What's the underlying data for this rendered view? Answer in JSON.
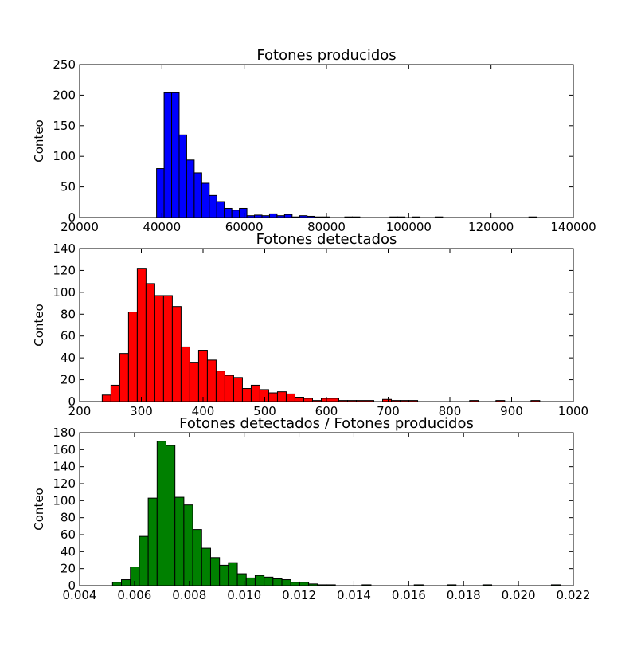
{
  "chart_data": [
    {
      "type": "bar",
      "title": "Fotones producidos",
      "xlabel": "",
      "ylabel": "Conteo",
      "color": "#0000ff",
      "xlim": [
        20000,
        140000
      ],
      "ylim": [
        0,
        250
      ],
      "xticks": [
        "20000",
        "40000",
        "60000",
        "80000",
        "100000",
        "120000",
        "140000"
      ],
      "yticks": [
        "0",
        "50",
        "100",
        "150",
        "200",
        "250"
      ],
      "bin_width": 1830,
      "bins": [
        {
          "x": 38700,
          "count": 80
        },
        {
          "x": 40530,
          "count": 204
        },
        {
          "x": 42360,
          "count": 204
        },
        {
          "x": 44190,
          "count": 135
        },
        {
          "x": 46020,
          "count": 94
        },
        {
          "x": 47850,
          "count": 73
        },
        {
          "x": 49680,
          "count": 56
        },
        {
          "x": 51510,
          "count": 36
        },
        {
          "x": 53340,
          "count": 26
        },
        {
          "x": 55170,
          "count": 15
        },
        {
          "x": 57000,
          "count": 12
        },
        {
          "x": 58830,
          "count": 15
        },
        {
          "x": 60660,
          "count": 3
        },
        {
          "x": 62490,
          "count": 4
        },
        {
          "x": 64320,
          "count": 3
        },
        {
          "x": 66150,
          "count": 6
        },
        {
          "x": 67980,
          "count": 3
        },
        {
          "x": 69810,
          "count": 5
        },
        {
          "x": 71640,
          "count": 1
        },
        {
          "x": 73470,
          "count": 3
        },
        {
          "x": 75300,
          "count": 2
        },
        {
          "x": 77130,
          "count": 1
        },
        {
          "x": 78960,
          "count": 1
        },
        {
          "x": 84450,
          "count": 1
        },
        {
          "x": 86280,
          "count": 1
        },
        {
          "x": 95430,
          "count": 1
        },
        {
          "x": 97260,
          "count": 1
        },
        {
          "x": 100920,
          "count": 1
        },
        {
          "x": 106410,
          "count": 1
        },
        {
          "x": 129200,
          "count": 1
        }
      ]
    },
    {
      "type": "bar",
      "title": "Fotones detectados",
      "xlabel": "",
      "ylabel": "Conteo",
      "color": "#ff0000",
      "xlim": [
        200,
        1000
      ],
      "ylim": [
        0,
        140
      ],
      "xticks": [
        "200",
        "300",
        "400",
        "500",
        "600",
        "700",
        "800",
        "900",
        "1000"
      ],
      "yticks": [
        "0",
        "20",
        "40",
        "60",
        "80",
        "100",
        "120",
        "140"
      ],
      "bin_width": 14.2,
      "bins": [
        {
          "x": 236.6,
          "count": 6
        },
        {
          "x": 250.8,
          "count": 15
        },
        {
          "x": 265.0,
          "count": 44
        },
        {
          "x": 279.2,
          "count": 82
        },
        {
          "x": 293.4,
          "count": 122
        },
        {
          "x": 307.6,
          "count": 108
        },
        {
          "x": 321.8,
          "count": 97
        },
        {
          "x": 336.0,
          "count": 97
        },
        {
          "x": 350.2,
          "count": 87
        },
        {
          "x": 364.4,
          "count": 50
        },
        {
          "x": 378.6,
          "count": 36
        },
        {
          "x": 392.8,
          "count": 47
        },
        {
          "x": 407.0,
          "count": 38
        },
        {
          "x": 421.2,
          "count": 28
        },
        {
          "x": 435.4,
          "count": 24
        },
        {
          "x": 449.6,
          "count": 22
        },
        {
          "x": 463.8,
          "count": 12
        },
        {
          "x": 478.0,
          "count": 15
        },
        {
          "x": 492.2,
          "count": 11
        },
        {
          "x": 506.4,
          "count": 8
        },
        {
          "x": 520.6,
          "count": 9
        },
        {
          "x": 534.8,
          "count": 7
        },
        {
          "x": 549.0,
          "count": 4
        },
        {
          "x": 563.2,
          "count": 3
        },
        {
          "x": 577.4,
          "count": 1
        },
        {
          "x": 591.6,
          "count": 3
        },
        {
          "x": 605.8,
          "count": 3
        },
        {
          "x": 620.0,
          "count": 1
        },
        {
          "x": 634.2,
          "count": 1
        },
        {
          "x": 648.4,
          "count": 1
        },
        {
          "x": 662.6,
          "count": 1
        },
        {
          "x": 691.0,
          "count": 2
        },
        {
          "x": 705.2,
          "count": 1
        },
        {
          "x": 719.4,
          "count": 1
        },
        {
          "x": 733.6,
          "count": 1
        },
        {
          "x": 832.0,
          "count": 1
        },
        {
          "x": 874.6,
          "count": 1
        },
        {
          "x": 931.4,
          "count": 1
        }
      ]
    },
    {
      "type": "bar",
      "title": "Fotones detectados / Fotones producidos",
      "xlabel": "",
      "ylabel": "Conteo",
      "color": "#008000",
      "xlim": [
        0.004,
        0.022
      ],
      "ylim": [
        0,
        180
      ],
      "xticks": [
        "0.004",
        "0.006",
        "0.008",
        "0.010",
        "0.012",
        "0.014",
        "0.016",
        "0.018",
        "0.020",
        "0.022"
      ],
      "yticks": [
        "0",
        "20",
        "40",
        "60",
        "80",
        "100",
        "120",
        "140",
        "160",
        "180"
      ],
      "bin_width": 0.000325,
      "bins": [
        {
          "x": 0.0052,
          "count": 4
        },
        {
          "x": 0.005525,
          "count": 7
        },
        {
          "x": 0.00585,
          "count": 22
        },
        {
          "x": 0.006175,
          "count": 58
        },
        {
          "x": 0.0065,
          "count": 103
        },
        {
          "x": 0.006825,
          "count": 170
        },
        {
          "x": 0.00715,
          "count": 165
        },
        {
          "x": 0.007475,
          "count": 104
        },
        {
          "x": 0.0078,
          "count": 95
        },
        {
          "x": 0.008125,
          "count": 66
        },
        {
          "x": 0.00845,
          "count": 44
        },
        {
          "x": 0.008775,
          "count": 33
        },
        {
          "x": 0.0091,
          "count": 24
        },
        {
          "x": 0.009425,
          "count": 27
        },
        {
          "x": 0.00975,
          "count": 14
        },
        {
          "x": 0.010075,
          "count": 9
        },
        {
          "x": 0.0104,
          "count": 12
        },
        {
          "x": 0.010725,
          "count": 10
        },
        {
          "x": 0.01105,
          "count": 8
        },
        {
          "x": 0.011375,
          "count": 7
        },
        {
          "x": 0.0117,
          "count": 4
        },
        {
          "x": 0.012025,
          "count": 4
        },
        {
          "x": 0.01235,
          "count": 2
        },
        {
          "x": 0.012675,
          "count": 1
        },
        {
          "x": 0.013,
          "count": 1
        },
        {
          "x": 0.0143,
          "count": 1
        },
        {
          "x": 0.0162,
          "count": 1
        },
        {
          "x": 0.0174,
          "count": 1
        },
        {
          "x": 0.0187,
          "count": 1
        },
        {
          "x": 0.0212,
          "count": 1
        }
      ]
    }
  ]
}
